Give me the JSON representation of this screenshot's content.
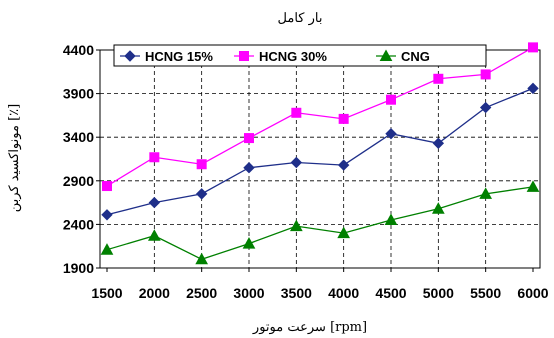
{
  "chart_data": {
    "type": "line",
    "title": "بار کامل",
    "xlabel": "سرعت موتور [rpm]",
    "ylabel": "مونواکسید کربن [٪]",
    "x": [
      1500,
      2000,
      2500,
      3000,
      3500,
      4000,
      4500,
      5000,
      5500,
      6000
    ],
    "ylim": [
      1900,
      4400
    ],
    "yticks": [
      1900,
      2400,
      2900,
      3400,
      3900,
      4400
    ],
    "grid": true,
    "legend_position": "top",
    "series": [
      {
        "name": "HCNG 15%",
        "color": "#1f2f8a",
        "marker": "diamond",
        "values": [
          2510,
          2650,
          2750,
          3050,
          3110,
          3080,
          3440,
          3330,
          3740,
          3960
        ]
      },
      {
        "name": "HCNG 30%",
        "color": "#ff00ff",
        "marker": "square",
        "values": [
          2840,
          3170,
          3090,
          3390,
          3680,
          3610,
          3830,
          4070,
          4120,
          4430
        ]
      },
      {
        "name": "CNG",
        "color": "#008000",
        "marker": "triangle",
        "values": [
          2110,
          2270,
          2000,
          2180,
          2380,
          2300,
          2450,
          2580,
          2750,
          2830
        ]
      }
    ]
  }
}
